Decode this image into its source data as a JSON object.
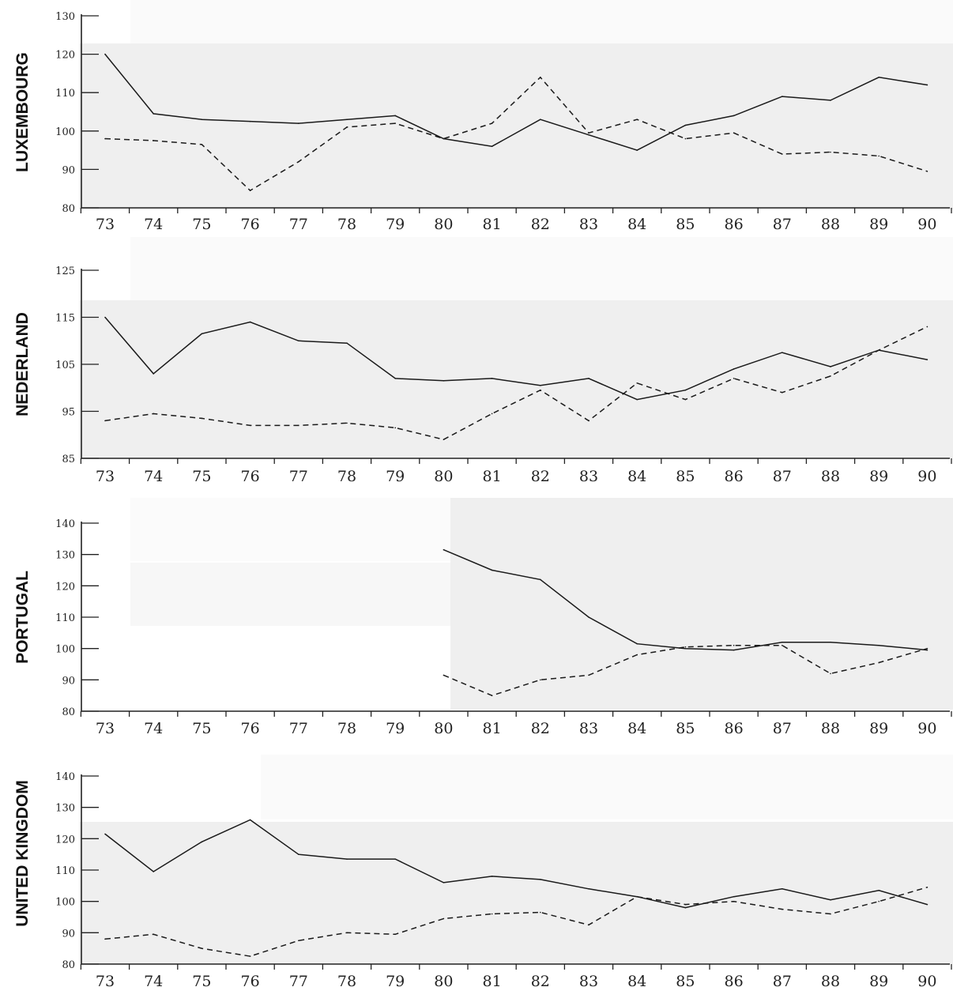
{
  "chart_data": [
    {
      "type": "line",
      "panel_label": "LUXEMBOURG",
      "categories": [
        "73",
        "74",
        "75",
        "76",
        "77",
        "78",
        "79",
        "80",
        "81",
        "82",
        "83",
        "84",
        "85",
        "86",
        "87",
        "88",
        "89",
        "90"
      ],
      "yticks": [
        80,
        90,
        100,
        110,
        120,
        130
      ],
      "ylim": [
        80,
        130
      ],
      "series": [
        {
          "style": "solid",
          "values": [
            120,
            104.5,
            103,
            102.5,
            102,
            103,
            104,
            98,
            96,
            103,
            99,
            95,
            101.5,
            104,
            109,
            108,
            114,
            112
          ]
        },
        {
          "style": "dashed",
          "values": [
            98,
            97.5,
            96.5,
            84.5,
            92,
            101,
            102,
            98,
            102,
            114,
            99.5,
            103,
            98,
            99.5,
            94,
            94.5,
            93.5,
            89.5
          ]
        }
      ]
    },
    {
      "type": "line",
      "panel_label": "NEDERLAND",
      "categories": [
        "73",
        "74",
        "75",
        "76",
        "77",
        "78",
        "79",
        "80",
        "81",
        "82",
        "83",
        "84",
        "85",
        "86",
        "87",
        "88",
        "89",
        "90"
      ],
      "yticks": [
        85,
        95,
        105,
        115,
        125
      ],
      "ylim": [
        85,
        125
      ],
      "series": [
        {
          "style": "solid",
          "values": [
            115,
            103,
            111.5,
            114,
            110,
            109.5,
            102,
            101.5,
            102,
            100.5,
            102,
            97.5,
            99.5,
            104,
            107.5,
            104.5,
            108,
            106
          ]
        },
        {
          "style": "dashed",
          "values": [
            93,
            94.5,
            93.5,
            92,
            92,
            92.5,
            91.5,
            89,
            94.5,
            99.5,
            93,
            101,
            97.5,
            102,
            99,
            102.5,
            108,
            113
          ]
        }
      ]
    },
    {
      "type": "line",
      "panel_label": "PORTUGAL",
      "categories": [
        "73",
        "74",
        "75",
        "76",
        "77",
        "78",
        "79",
        "80",
        "81",
        "82",
        "83",
        "84",
        "85",
        "86",
        "87",
        "88",
        "89",
        "90"
      ],
      "yticks": [
        80,
        90,
        100,
        110,
        120,
        130,
        140
      ],
      "ylim": [
        80,
        140
      ],
      "series": [
        {
          "style": "solid",
          "values": [
            null,
            null,
            null,
            null,
            null,
            null,
            null,
            131.5,
            125,
            122,
            110,
            101.5,
            100,
            99.5,
            102,
            102,
            101,
            99.5
          ]
        },
        {
          "style": "dashed",
          "values": [
            null,
            null,
            null,
            null,
            null,
            null,
            null,
            91.5,
            85,
            90,
            91.5,
            98,
            100.5,
            101,
            101,
            92,
            95.5,
            100
          ]
        }
      ]
    },
    {
      "type": "line",
      "panel_label": "UNITED KINGDOM",
      "categories": [
        "73",
        "74",
        "75",
        "76",
        "77",
        "78",
        "79",
        "80",
        "81",
        "82",
        "83",
        "84",
        "85",
        "86",
        "87",
        "88",
        "89",
        "90"
      ],
      "yticks": [
        80,
        90,
        100,
        110,
        120,
        130,
        140
      ],
      "ylim": [
        80,
        140
      ],
      "series": [
        {
          "style": "solid",
          "values": [
            121.5,
            109.5,
            119,
            126,
            115,
            113.5,
            113.5,
            106,
            108,
            107,
            104,
            101.5,
            98,
            101.5,
            104,
            100.5,
            103.5,
            99
          ]
        },
        {
          "style": "dashed",
          "values": [
            88,
            89.5,
            85,
            82.5,
            87.5,
            90,
            89.5,
            94.5,
            96,
            96.5,
            92.5,
            101.5,
            99,
            100,
            97.5,
            96,
            100,
            104.5
          ]
        }
      ]
    }
  ]
}
